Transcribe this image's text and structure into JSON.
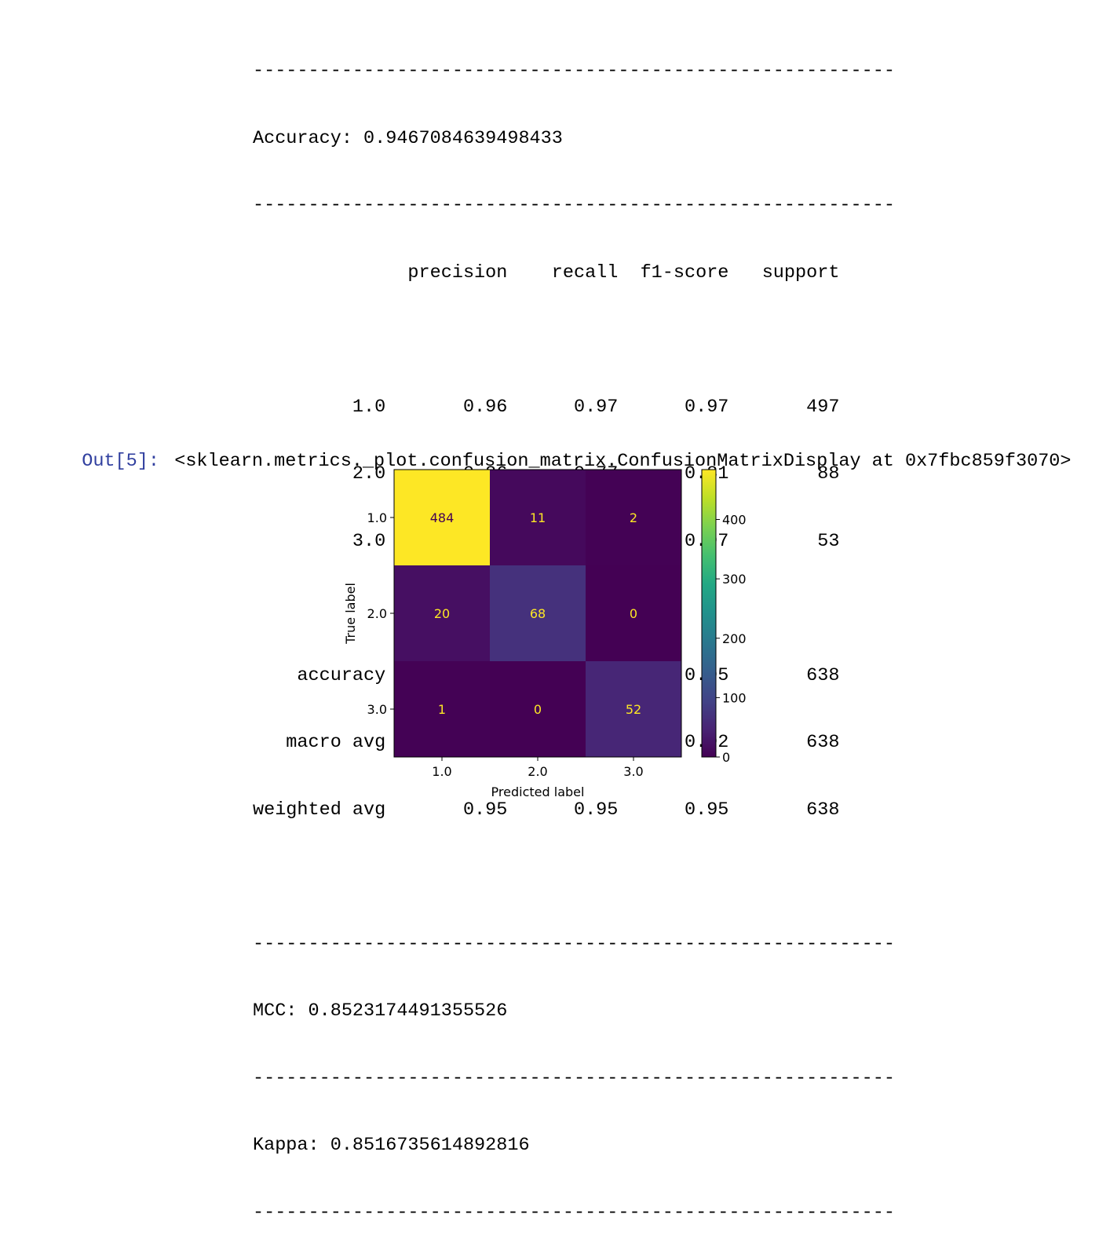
{
  "stdout": {
    "separator": "----------------------------------------------------------",
    "accuracy_line": "Accuracy: 0.9467084639498433",
    "report_header": "              precision    recall  f1-score   support",
    "report_rows": [
      "         1.0       0.96      0.97      0.97       497",
      "         2.0       0.86      0.77      0.81        88",
      "         3.0       0.96      0.98      0.97        53",
      "",
      "    accuracy                           0.95       638",
      "   macro avg       0.93      0.91      0.92       638",
      "weighted avg       0.95      0.95      0.95       638"
    ],
    "mcc_line": "MCC: 0.8523174491355526",
    "kappa_line": "Kappa: 0.8516735614892816"
  },
  "output": {
    "prompt": "Out[5]:",
    "repr": "<sklearn.metrics._plot.confusion_matrix.ConfusionMatrixDisplay at 0x7fbc859f3070>"
  },
  "chart_data": {
    "type": "heatmap",
    "colormap": "viridis",
    "xlabel": "Predicted label",
    "ylabel": "True label",
    "x_categories": [
      "1.0",
      "2.0",
      "3.0"
    ],
    "y_categories": [
      "1.0",
      "2.0",
      "3.0"
    ],
    "matrix": [
      [
        484,
        11,
        2
      ],
      [
        20,
        68,
        0
      ],
      [
        1,
        0,
        52
      ]
    ],
    "colorbar": {
      "range": [
        0,
        484
      ],
      "ticks": [
        "0",
        "100",
        "200",
        "300",
        "400"
      ],
      "tick_values": [
        0,
        100,
        200,
        300,
        400
      ]
    },
    "colors": {
      "low": "#440154",
      "high": "#fde725",
      "text_on_dark": "#fde725",
      "text_on_light": "#440154"
    }
  }
}
